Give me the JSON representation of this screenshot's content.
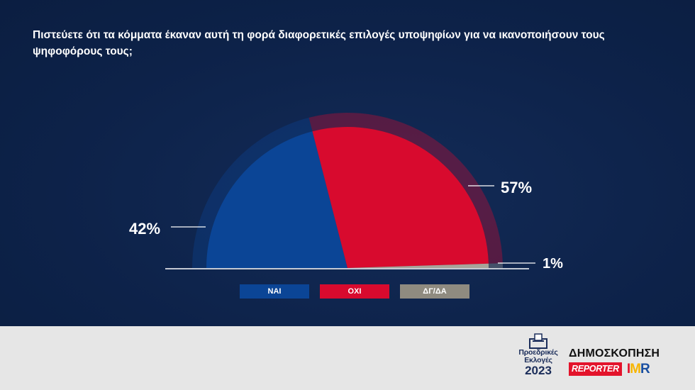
{
  "question": "Πιστεύετε ότι τα κόμματα έκαναν αυτή τη φορά διαφορετικές επιλογές υποψηφίων για να ικανοποιήσουν τους ψηφοφόρους τους;",
  "chart_data": {
    "type": "pie",
    "title": "Πιστεύετε ότι τα κόμματα έκαναν αυτή τη φορά διαφορετικές επιλογές υποψηφίων για να ικανοποιήσουν τους ψηφοφόρους τους;",
    "categories": [
      "ΝΑΙ",
      "ΟΧΙ",
      "ΔΓ/ΔΑ"
    ],
    "values": [
      42,
      57,
      1
    ],
    "labels": [
      "42%",
      "57%",
      "1%"
    ],
    "colors": [
      "#0b4596",
      "#d80a2e",
      "#a7a49a"
    ],
    "legend_position": "bottom"
  },
  "legend": [
    {
      "label": "ΝΑΙ",
      "color": "#0b4596"
    },
    {
      "label": "ΟΧΙ",
      "color": "#d80a2e"
    },
    {
      "label": "ΔΓ/ΔΑ",
      "color": "#8f8b80"
    }
  ],
  "footer": {
    "elections_logo": {
      "line1": "Προεδρικές",
      "line2": "Εκλογές",
      "year": "2023"
    },
    "poll_logo": {
      "title": "ΔΗΜΟΣΚΟΠΗΣΗ",
      "reporter": "REPORTER",
      "imr": "IMR"
    }
  }
}
